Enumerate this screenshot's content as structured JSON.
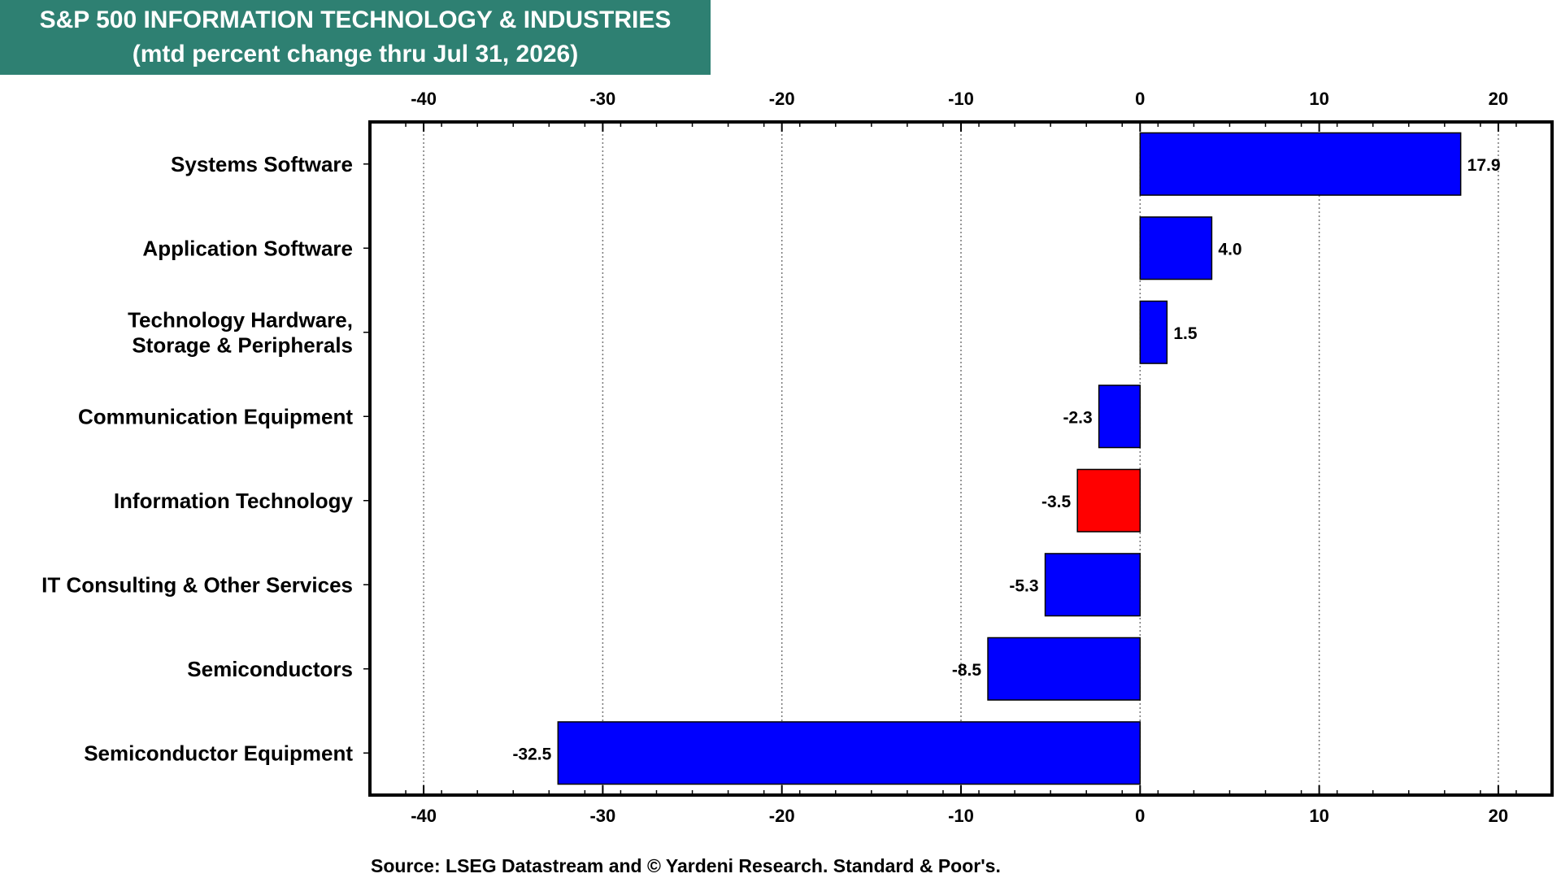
{
  "chart_data": {
    "type": "bar",
    "orientation": "horizontal",
    "title": "S&P 500 INFORMATION TECHNOLOGY & INDUSTRIES",
    "subtitle": "(mtd percent change thru Jul 31, 2026)",
    "categories": [
      [
        "Systems Software"
      ],
      [
        "Application Software"
      ],
      [
        "Technology Hardware,",
        "Storage & Peripherals"
      ],
      [
        "Communication Equipment"
      ],
      [
        "Information Technology"
      ],
      [
        "IT Consulting & Other Services"
      ],
      [
        "Semiconductors"
      ],
      [
        "Semiconductor Equipment"
      ]
    ],
    "values": [
      17.9,
      4.0,
      1.5,
      -2.3,
      -3.5,
      -5.3,
      -8.5,
      -32.5
    ],
    "value_labels": [
      "17.9",
      "4.0",
      "1.5",
      "-2.3",
      "-3.5",
      "-5.3",
      "-8.5",
      "-32.5"
    ],
    "highlight_index": 4,
    "xlim": [
      -43,
      23
    ],
    "xticks": [
      -40,
      -30,
      -20,
      -10,
      0,
      10,
      20
    ],
    "xtick_labels": [
      "-40",
      "-30",
      "-20",
      "-10",
      "0",
      "10",
      "20"
    ],
    "grid": "vertical dotted",
    "colors": {
      "bar": "#0000ff",
      "highlight": "#ff0000",
      "title_bg": "#2e8072"
    },
    "source": "Source: LSEG Datastream and © Yardeni Research. Standard & Poor's."
  }
}
